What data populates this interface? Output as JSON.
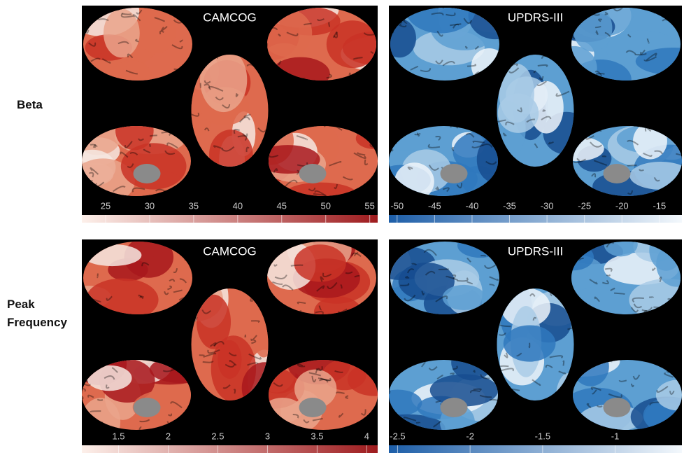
{
  "rows": [
    {
      "label": "Beta",
      "panels": [
        {
          "title": "CAMCOG",
          "colorbar": {
            "lim": [
              22.3,
              55.9
            ],
            "ticks": [
              25,
              30,
              35,
              40,
              45,
              50,
              55
            ],
            "colors": [
              "#fdf0ea",
              "#9e1b1e"
            ]
          }
        },
        {
          "title": "UPDRS-III",
          "colorbar": {
            "lim": [
              -51.1,
              -12.0
            ],
            "ticks": [
              -50,
              -45,
              -40,
              -35,
              -30,
              -25,
              -20,
              -15
            ],
            "colors": [
              "#1d5ea8",
              "#f3f8fc"
            ]
          }
        }
      ]
    },
    {
      "label": "Peak Frequency",
      "panels": [
        {
          "title": "CAMCOG",
          "colorbar": {
            "lim": [
              1.13,
              4.11
            ],
            "ticks": [
              1.5,
              2,
              2.5,
              3,
              3.5,
              4
            ],
            "colors": [
              "#fdf0ea",
              "#9e1b1e"
            ]
          }
        },
        {
          "title": "UPDRS-III",
          "colorbar": {
            "lim": [
              -2.56,
              -0.54
            ],
            "ticks": [
              -2.5,
              -2,
              -1.5,
              -1
            ],
            "colors": [
              "#1d5ea8",
              "#f3f8fc"
            ]
          }
        }
      ]
    }
  ]
}
